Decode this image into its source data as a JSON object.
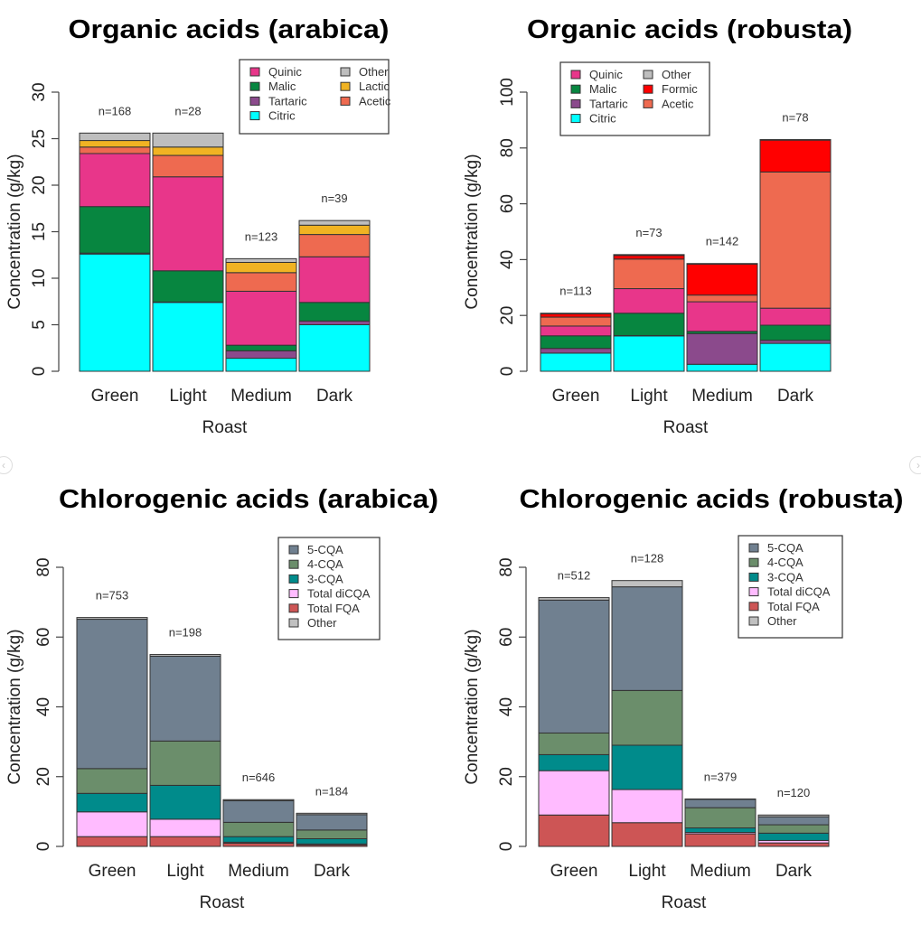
{
  "nav": {
    "prev_icon": "chevron-left-icon",
    "next_icon": "chevron-right-icon"
  },
  "chart_data": [
    {
      "type": "bar",
      "stacked": true,
      "title": "Organic acids (arabica)",
      "xlabel": "Roast",
      "ylabel": "Concentration (g/kg)",
      "ylim": [
        0,
        30
      ],
      "yticks": [
        "0",
        "5",
        "10",
        "15",
        "20",
        "25",
        "30"
      ],
      "categories": [
        "Green",
        "Light",
        "Medium",
        "Dark"
      ],
      "n_labels": [
        "n=168",
        "n=28",
        "n=123",
        "n=39"
      ],
      "legend_order": [
        "Quinic",
        "Malic",
        "Tartaric",
        "Citric",
        "Other",
        "Lactic",
        "Acetic"
      ],
      "legend_placement": "top-right",
      "series": [
        {
          "name": "Citric",
          "color": "#00FFFF",
          "values": [
            12.6,
            7.4,
            1.4,
            5.0
          ]
        },
        {
          "name": "Tartaric",
          "color": "#8B4A8C",
          "values": [
            0.1,
            0.05,
            0.8,
            0.4
          ]
        },
        {
          "name": "Malic",
          "color": "#078640",
          "values": [
            5.0,
            3.35,
            0.6,
            2.0
          ]
        },
        {
          "name": "Quinic",
          "color": "#E8368A",
          "values": [
            5.7,
            10.1,
            5.8,
            4.9
          ]
        },
        {
          "name": "Acetic",
          "color": "#EE6A50",
          "values": [
            0.7,
            2.3,
            2.0,
            2.4
          ]
        },
        {
          "name": "Lactic",
          "color": "#F0B323",
          "values": [
            0.7,
            0.9,
            1.1,
            1.0
          ]
        },
        {
          "name": "Other",
          "color": "#BEBEBE",
          "values": [
            0.8,
            1.5,
            0.4,
            0.5
          ]
        }
      ]
    },
    {
      "type": "bar",
      "stacked": true,
      "title": "Organic acids (robusta)",
      "xlabel": "Roast",
      "ylabel": "Concentration (g/kg)",
      "ylim": [
        0,
        100
      ],
      "yticks": [
        "0",
        "20",
        "40",
        "60",
        "80",
        "100"
      ],
      "categories": [
        "Green",
        "Light",
        "Medium",
        "Dark"
      ],
      "n_labels": [
        "n=113",
        "n=73",
        "n=142",
        "n=78"
      ],
      "legend_order": [
        "Quinic",
        "Malic",
        "Tartaric",
        "Citric",
        "Other",
        "Formic",
        "Acetic"
      ],
      "legend_placement": "top-left",
      "series": [
        {
          "name": "Citric",
          "color": "#00FFFF",
          "values": [
            6.5,
            12.7,
            2.5,
            10.0
          ]
        },
        {
          "name": "Tartaric",
          "color": "#8B4A8C",
          "values": [
            1.7,
            0.1,
            11.0,
            1.1
          ]
        },
        {
          "name": "Malic",
          "color": "#078640",
          "values": [
            4.5,
            8.0,
            0.8,
            5.4
          ]
        },
        {
          "name": "Quinic",
          "color": "#E8368A",
          "values": [
            3.5,
            8.8,
            10.6,
            6.1
          ]
        },
        {
          "name": "Acetic",
          "color": "#EE6A50",
          "values": [
            3.2,
            10.6,
            2.4,
            48.8
          ]
        },
        {
          "name": "Formic",
          "color": "#FF0000",
          "values": [
            1.2,
            1.3,
            11.1,
            11.4
          ]
        },
        {
          "name": "Other",
          "color": "#BEBEBE",
          "values": [
            0.2,
            0.3,
            0.2,
            0.2
          ]
        }
      ]
    },
    {
      "type": "bar",
      "stacked": true,
      "title": "Chlorogenic acids (arabica)",
      "xlabel": "Roast",
      "ylabel": "Concentration (g/kg)",
      "ylim": [
        0,
        80
      ],
      "yticks": [
        "0",
        "20",
        "40",
        "60",
        "80"
      ],
      "categories": [
        "Green",
        "Light",
        "Medium",
        "Dark"
      ],
      "n_labels": [
        "n=753",
        "n=198",
        "n=646",
        "n=184"
      ],
      "legend_order": [
        "5-CQA",
        "4-CQA",
        "3-CQA",
        "Total diCQA",
        "Total FQA",
        "Other"
      ],
      "legend_placement": "top-right",
      "series": [
        {
          "name": "Total FQA",
          "color": "#CD5555",
          "values": [
            2.8,
            2.8,
            0.9,
            0.4
          ]
        },
        {
          "name": "Total diCQA",
          "color": "#FFBBFF",
          "values": [
            7.1,
            5.0,
            0.3,
            0.3
          ]
        },
        {
          "name": "3-CQA",
          "color": "#008B8B",
          "values": [
            5.3,
            9.7,
            1.6,
            1.5
          ]
        },
        {
          "name": "4-CQA",
          "color": "#6B8E6B",
          "values": [
            7.1,
            12.7,
            4.1,
            2.5
          ]
        },
        {
          "name": "5-CQA",
          "color": "#708090",
          "values": [
            42.8,
            24.3,
            6.2,
            4.4
          ]
        },
        {
          "name": "Other",
          "color": "#C0C0C0",
          "values": [
            0.5,
            0.5,
            0.3,
            0.4
          ]
        }
      ]
    },
    {
      "type": "bar",
      "stacked": true,
      "title": "Chlorogenic acids (robusta)",
      "xlabel": "Roast",
      "ylabel": "Concentration (g/kg)",
      "ylim": [
        0,
        80
      ],
      "yticks": [
        "0",
        "20",
        "40",
        "60",
        "80"
      ],
      "categories": [
        "Green",
        "Light",
        "Medium",
        "Dark"
      ],
      "n_labels": [
        "n=512",
        "n=128",
        "n=379",
        "n=120"
      ],
      "legend_order": [
        "5-CQA",
        "4-CQA",
        "3-CQA",
        "Total diCQA",
        "Total FQA",
        "Other"
      ],
      "legend_placement": "top-right",
      "series": [
        {
          "name": "Total FQA",
          "color": "#CD5555",
          "values": [
            9.0,
            6.8,
            3.6,
            1.0
          ]
        },
        {
          "name": "Total diCQA",
          "color": "#FFBBFF",
          "values": [
            12.7,
            9.5,
            0.4,
            0.7
          ]
        },
        {
          "name": "3-CQA",
          "color": "#008B8B",
          "values": [
            4.6,
            12.7,
            1.3,
            2.1
          ]
        },
        {
          "name": "4-CQA",
          "color": "#6B8E6B",
          "values": [
            6.2,
            15.7,
            5.8,
            2.4
          ]
        },
        {
          "name": "5-CQA",
          "color": "#708090",
          "values": [
            38.1,
            29.7,
            2.4,
            2.3
          ]
        },
        {
          "name": "Other",
          "color": "#C0C0C0",
          "values": [
            0.7,
            1.8,
            0.1,
            0.5
          ]
        }
      ]
    }
  ]
}
